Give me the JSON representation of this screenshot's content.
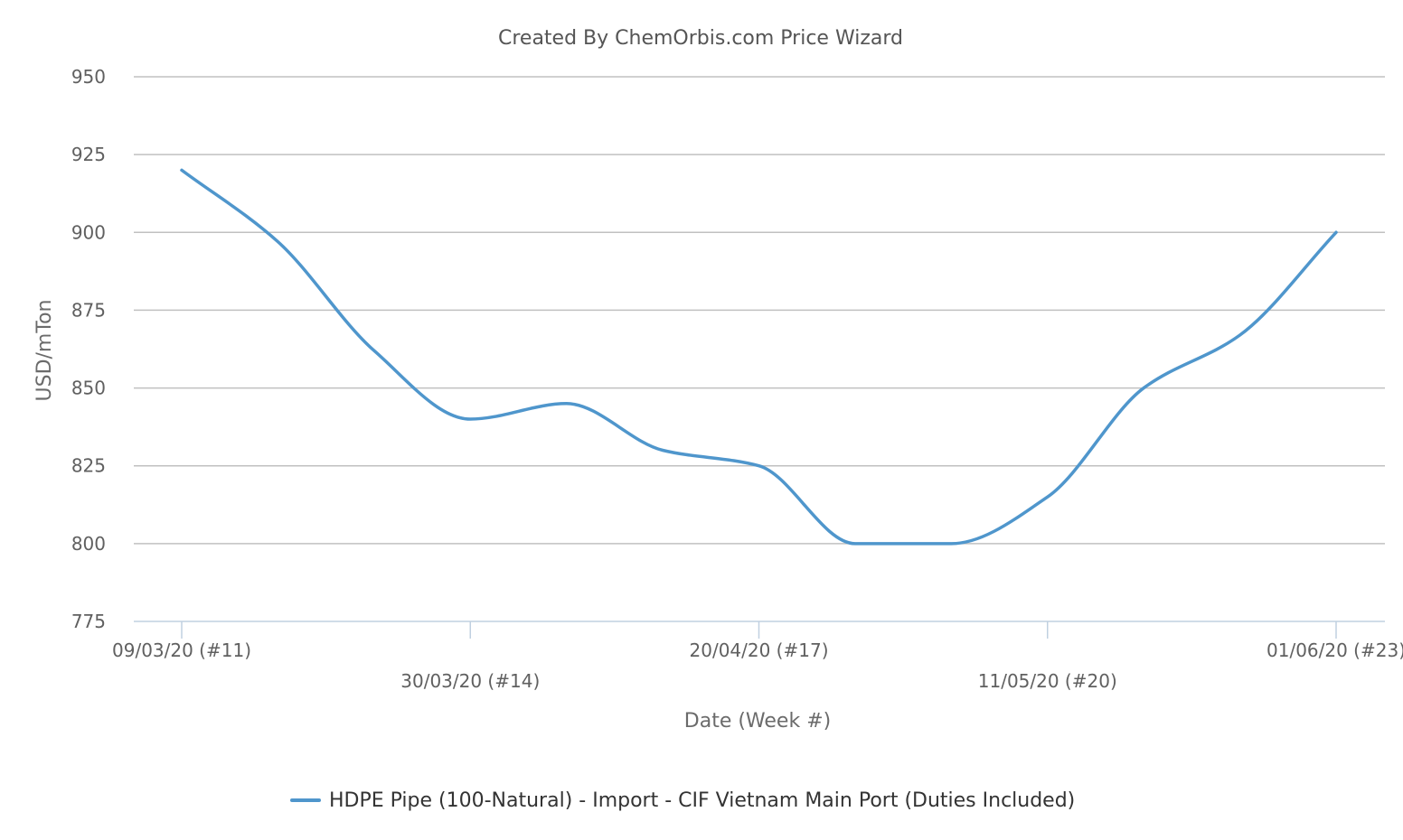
{
  "chart_data": {
    "type": "line",
    "title": "Created By ChemOrbis.com Price Wizard",
    "xlabel": "Date (Week #)",
    "ylabel": "USD/mTon",
    "ylim": [
      775,
      950
    ],
    "y_ticks": [
      950,
      925,
      900,
      875,
      850,
      825,
      800,
      775
    ],
    "x_ticks": [
      "09/03/20 (#11)",
      "30/03/20 (#14)",
      "20/04/20 (#17)",
      "11/05/20 (#20)",
      "01/06/20 (#23)"
    ],
    "x": [
      "09/03/20 (#11)",
      "16/03/20 (#12)",
      "23/03/20 (#13)",
      "30/03/20 (#14)",
      "06/04/20 (#15)",
      "13/04/20 (#16)",
      "20/04/20 (#17)",
      "27/04/20 (#18)",
      "04/05/20 (#19)",
      "11/05/20 (#20)",
      "18/05/20 (#21)",
      "25/05/20 (#22)",
      "01/06/20 (#23)"
    ],
    "series": [
      {
        "name": "HDPE Pipe (100-Natural) - Import - CIF Vietnam Main Port (Duties Included)",
        "color": "#4f96cc",
        "values": [
          920,
          897,
          862,
          840,
          845,
          830,
          825,
          800,
          800,
          815,
          850,
          867,
          900
        ]
      }
    ],
    "grid": true,
    "legend_position": "bottom-center"
  }
}
